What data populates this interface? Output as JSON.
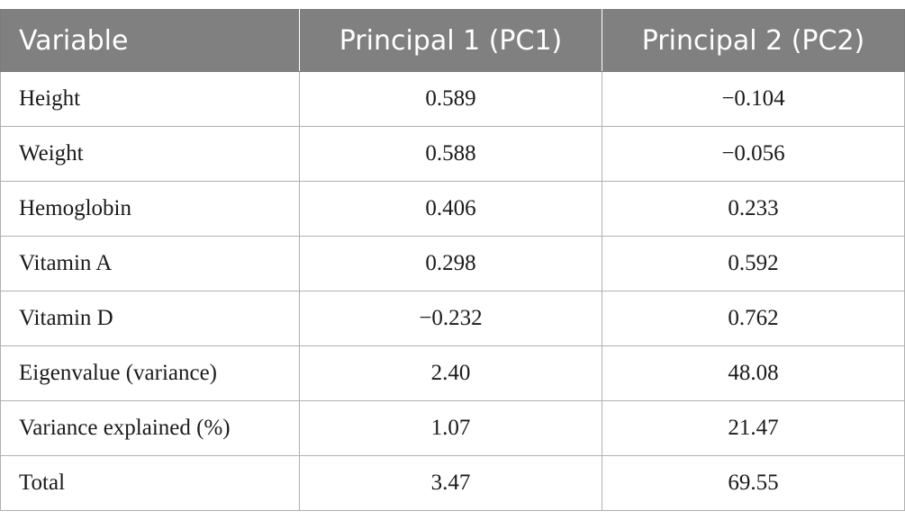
{
  "table": {
    "headers": [
      "Variable",
      "Principal 1 (PC1)",
      "Principal 2 (PC2)"
    ],
    "rows": [
      [
        "Height",
        "0.589",
        "−0.104"
      ],
      [
        "Weight",
        "0.588",
        "−0.056"
      ],
      [
        "Hemoglobin",
        "0.406",
        "0.233"
      ],
      [
        "Vitamin A",
        "0.298",
        "0.592"
      ],
      [
        "Vitamin D",
        "−0.232",
        "0.762"
      ],
      [
        "Eigenvalue (variance)",
        "2.40",
        "48.08"
      ],
      [
        "Variance explained (%)",
        "1.07",
        "21.47"
      ],
      [
        "Total",
        "3.47",
        "69.55"
      ]
    ]
  }
}
